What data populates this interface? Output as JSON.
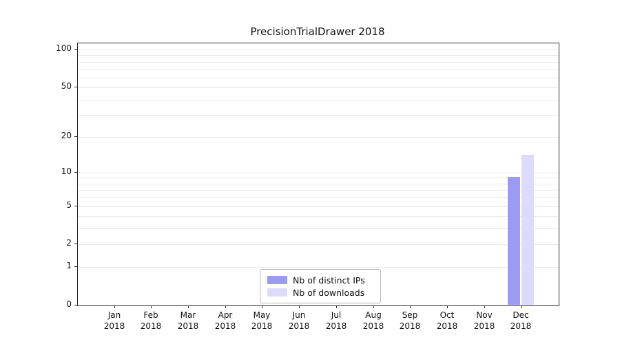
{
  "title": "PrecisionTrialDrawer 2018",
  "legend": {
    "items": [
      {
        "label": "Nb of distinct IPs"
      },
      {
        "label": "Nb of downloads"
      }
    ]
  },
  "chart_data": {
    "type": "bar",
    "title": "PrecisionTrialDrawer 2018",
    "categories": [
      "Jan",
      "Feb",
      "Mar",
      "Apr",
      "May",
      "Jun",
      "Jul",
      "Aug",
      "Sep",
      "Oct",
      "Nov",
      "Dec"
    ],
    "year_label": "2018",
    "series": [
      {
        "name": "Nb of distinct IPs",
        "color": "#9b9bf2",
        "values": [
          0,
          0,
          0,
          0,
          0,
          0,
          0,
          0,
          0,
          0,
          0,
          9
        ]
      },
      {
        "name": "Nb of downloads",
        "color": "#dcdcfa",
        "values": [
          0,
          0,
          0,
          0,
          0,
          0,
          0,
          0,
          0,
          0,
          0,
          14
        ]
      }
    ],
    "yscale": "log1p",
    "ylim": [
      0,
      100
    ],
    "yticks": [
      0,
      1,
      2,
      5,
      10,
      20,
      50,
      100
    ],
    "gridline_values": [
      1,
      2,
      3,
      4,
      5,
      6,
      7,
      8,
      9,
      10,
      20,
      30,
      40,
      50,
      60,
      70,
      80,
      90,
      100
    ],
    "grid": "horizontal",
    "legend_position": "bottom-center-inside"
  }
}
